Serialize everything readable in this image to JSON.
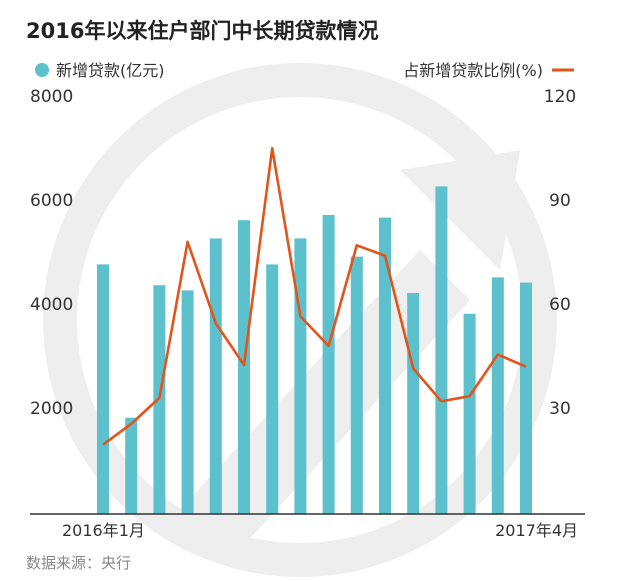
{
  "colors": {
    "bar": "#5cc1cc",
    "line": "#e3541b",
    "axis": "#333333",
    "watermark": "#eeeeee",
    "title": "#222222",
    "source": "#888888"
  },
  "chart_data": {
    "type": "bar",
    "title": "2016年以来住户部门中长期贷款情况",
    "xlabel": "",
    "ylabel": "",
    "x_tick_labels": [
      "2016年1月",
      "2017年4月"
    ],
    "categories": [
      "2016-01",
      "2016-02",
      "2016-03",
      "2016-04",
      "2016-05",
      "2016-06",
      "2016-07",
      "2016-08",
      "2016-09",
      "2016-10",
      "2016-11",
      "2016-12",
      "2017-01",
      "2017-02",
      "2017-03",
      "2017-04"
    ],
    "series": [
      {
        "name": "新增贷款(亿元)",
        "type": "bar",
        "axis": "left",
        "values": [
          4800,
          1850,
          4400,
          4300,
          5300,
          5650,
          4800,
          5300,
          5750,
          4950,
          5700,
          4250,
          6300,
          3850,
          4550,
          4450
        ]
      },
      {
        "name": "占新增贷款比例(%)",
        "type": "line",
        "axis": "right",
        "values": [
          20,
          26,
          33.5,
          78.5,
          55,
          43,
          105.5,
          57,
          48.5,
          77.5,
          74.5,
          42,
          32.5,
          34,
          46,
          42.5
        ]
      }
    ],
    "y_left": {
      "range": [
        0,
        8000
      ],
      "ticks": [
        2000,
        4000,
        6000,
        8000
      ]
    },
    "y_right": {
      "range": [
        0,
        120
      ],
      "ticks": [
        30,
        60,
        90,
        120
      ]
    },
    "legend_placement": "top",
    "grid": false
  },
  "source": "数据来源：央行"
}
